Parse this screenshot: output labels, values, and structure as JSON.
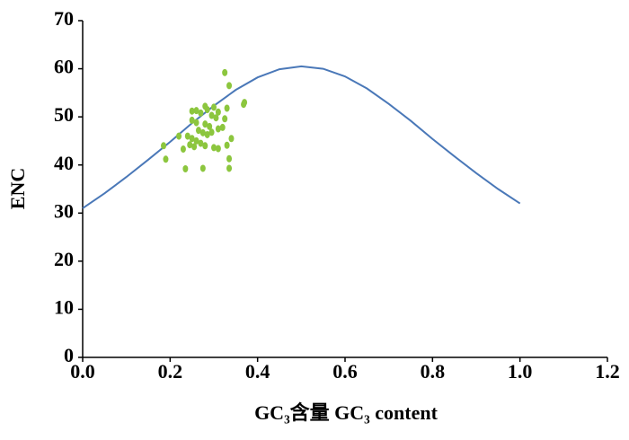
{
  "chart_data": {
    "type": "scatter",
    "xlabel": "GC₃含量 GC₃ content",
    "ylabel": "ENC",
    "xlim": [
      0,
      1.2
    ],
    "xticks": [
      {
        "value": 0,
        "label": "0.0"
      },
      0.2,
      0.4,
      0.6,
      0.8,
      {
        "value": 1,
        "label": "1.0"
      },
      1.2
    ],
    "ylim": [
      0,
      70
    ],
    "yticks": [
      0,
      10,
      20,
      30,
      40,
      50,
      60,
      70
    ],
    "grid": false,
    "series": [
      {
        "type": "line",
        "color": "#4a78b8",
        "x": [
          0,
          0.05,
          0.1,
          0.15,
          0.2,
          0.25,
          0.3,
          0.35,
          0.4,
          0.45,
          0.5,
          0.55,
          0.6,
          0.65,
          0.7,
          0.75,
          0.8,
          0.85,
          0.9,
          0.95,
          1
        ],
        "values": [
          31.0,
          34.1,
          37.5,
          41.1,
          44.8,
          48.7,
          52.3,
          55.6,
          58.2,
          59.9,
          60.5,
          60.0,
          58.4,
          55.9,
          52.7,
          49.2,
          45.4,
          41.8,
          38.3,
          35.0,
          32.0
        ]
      },
      {
        "type": "scatter",
        "color": "#8cc63e",
        "x": [
          0.185,
          0.19,
          0.235,
          0.275,
          0.335,
          0.325,
          0.335,
          0.37,
          0.368,
          0.3,
          0.28,
          0.285,
          0.31,
          0.33,
          0.25,
          0.26,
          0.27,
          0.295,
          0.305,
          0.325,
          0.25,
          0.26,
          0.28,
          0.29,
          0.31,
          0.32,
          0.265,
          0.275,
          0.285,
          0.295,
          0.24,
          0.25,
          0.26,
          0.27,
          0.245,
          0.255,
          0.28,
          0.3,
          0.31,
          0.33,
          0.335,
          0.23,
          0.22,
          0.34
        ],
        "values": [
          44,
          41.2,
          39.2,
          39.3,
          39.3,
          59.2,
          56.5,
          53,
          52.6,
          52,
          52.2,
          51.5,
          51,
          51.8,
          51.2,
          51.3,
          50.8,
          50.3,
          49.8,
          49.6,
          49.3,
          48.8,
          48.5,
          48,
          47.5,
          47.8,
          47.2,
          46.7,
          46.3,
          46.8,
          46,
          45.5,
          45,
          44.5,
          44.2,
          43.8,
          44,
          43.6,
          43.4,
          44.1,
          41.3,
          43.3,
          46,
          45.5
        ]
      }
    ]
  }
}
